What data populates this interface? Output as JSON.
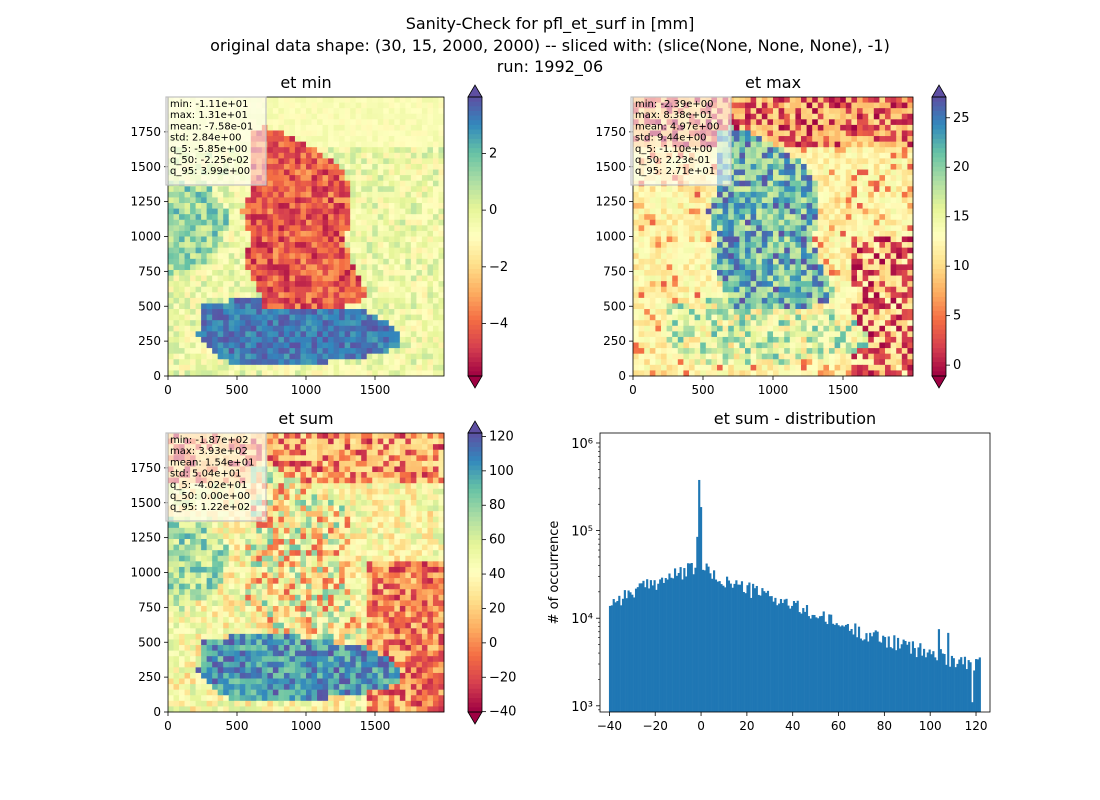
{
  "figure": {
    "suptitle_lines": [
      "Sanity-Check for pfl_et_surf in [mm]",
      "original data shape: (30, 15, 2000, 2000) -- sliced with: (slice(None, None, None), -1)",
      "run: 1992_06"
    ]
  },
  "colors": {
    "spectral": [
      "#9e0142",
      "#d53e4f",
      "#f46d43",
      "#fdae61",
      "#fee08b",
      "#ffffbf",
      "#e6f598",
      "#abdda4",
      "#66c2a5",
      "#3288bd",
      "#5e4fa2"
    ],
    "hist_bar": "#1f77b4",
    "stats_box_edge": "#c0c0c0"
  },
  "chart_data": [
    {
      "type": "heatmap",
      "title": "et min",
      "xlim": [
        0,
        2000
      ],
      "ylim": [
        0,
        2000
      ],
      "x_ticks": [
        "0",
        "500",
        "1000",
        "1500"
      ],
      "y_ticks": [
        "0",
        "250",
        "500",
        "750",
        "1000",
        "1250",
        "1500",
        "1750"
      ],
      "colorbar": {
        "range": [
          -5.85,
          3.99
        ],
        "ticks": [
          "−4",
          "−2",
          "0",
          "2"
        ],
        "extend": "both"
      },
      "stats": [
        "min: -1.11e+01",
        "max: 1.31e+01",
        "mean: -7.58e-01",
        "std: 2.84e+00",
        "q_5: -5.85e+00",
        "q_50: -2.25e-02",
        "q_95: 3.99e+00"
      ]
    },
    {
      "type": "heatmap",
      "title": "et max",
      "xlim": [
        0,
        2000
      ],
      "ylim": [
        0,
        2000
      ],
      "x_ticks": [
        "0",
        "500",
        "1000",
        "1500"
      ],
      "y_ticks": [
        "0",
        "250",
        "500",
        "750",
        "1000",
        "1250",
        "1500",
        "1750"
      ],
      "colorbar": {
        "range": [
          -1.1,
          27.1
        ],
        "ticks": [
          "0",
          "5",
          "10",
          "15",
          "20",
          "25"
        ],
        "extend": "both"
      },
      "stats": [
        "min: -2.39e+00",
        "max: 8.38e+01",
        "mean: 4.97e+00",
        "std: 9.44e+00",
        "q_5: -1.10e+00",
        "q_50: 2.23e-01",
        "q_95: 2.71e+01"
      ]
    },
    {
      "type": "heatmap",
      "title": "et sum",
      "xlim": [
        0,
        2000
      ],
      "ylim": [
        0,
        2000
      ],
      "x_ticks": [
        "0",
        "500",
        "1000",
        "1500"
      ],
      "y_ticks": [
        "0",
        "250",
        "500",
        "750",
        "1000",
        "1250",
        "1500",
        "1750"
      ],
      "colorbar": {
        "range": [
          -40.2,
          122
        ],
        "ticks": [
          "−40",
          "−20",
          "0",
          "20",
          "40",
          "60",
          "80",
          "100",
          "120"
        ],
        "extend": "both"
      },
      "stats": [
        "min: -1.87e+02",
        "max: 3.93e+02",
        "mean: 1.54e+01",
        "std: 5.04e+01",
        "q_5: -4.02e+01",
        "q_50: 0.00e+00",
        "q_95: 1.22e+02"
      ]
    },
    {
      "type": "bar",
      "title": "et sum - distribution",
      "ylabel": "# of occurrence",
      "yscale": "log",
      "xlim": [
        -44.1,
        126.1
      ],
      "ylim": [
        850,
        1300000
      ],
      "x_ticks": [
        -40,
        -20,
        0,
        20,
        40,
        60,
        80,
        100,
        120
      ],
      "x_tick_labels": [
        "−40",
        "−20",
        "0",
        "20",
        "40",
        "60",
        "80",
        "100",
        "120"
      ],
      "y_ticks": [
        1000,
        10000,
        100000,
        1000000
      ],
      "y_tick_labels": [
        "10³",
        "10⁴",
        "10⁵",
        "10⁶"
      ],
      "bin_range": [
        -40.2,
        122
      ],
      "bins": 200,
      "envelope": [
        [
          -40.2,
          15000
        ],
        [
          -30,
          20000
        ],
        [
          -20,
          26000
        ],
        [
          -10,
          32000
        ],
        [
          -5,
          36000
        ],
        [
          -2,
          40000
        ],
        [
          -0.4,
          820000
        ],
        [
          0.4,
          42000
        ],
        [
          5,
          30000
        ],
        [
          10,
          27000
        ],
        [
          20,
          22000
        ],
        [
          30,
          18000
        ],
        [
          40,
          14000
        ],
        [
          50,
          11000
        ],
        [
          60,
          8500
        ],
        [
          70,
          7000
        ],
        [
          80,
          5800
        ],
        [
          90,
          4800
        ],
        [
          100,
          4000
        ],
        [
          110,
          3400
        ],
        [
          122,
          3000
        ]
      ],
      "notable_bars": [
        [
          103.5,
          7500
        ],
        [
          108,
          6800
        ],
        [
          118.5,
          1100
        ]
      ]
    }
  ]
}
